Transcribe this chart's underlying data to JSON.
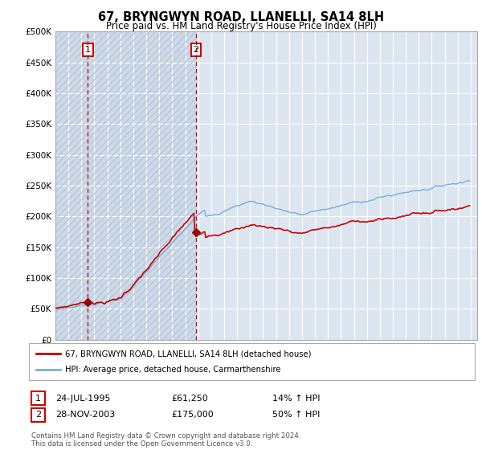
{
  "title": "67, BRYNGWYN ROAD, LLANELLI, SA14 8LH",
  "subtitle": "Price paid vs. HM Land Registry's House Price Index (HPI)",
  "sale1_label_date": "24-JUL-1995",
  "sale1_price": 61250,
  "sale1_pct": "14%",
  "sale2_label_date": "28-NOV-2003",
  "sale2_price": 175000,
  "sale2_pct": "50%",
  "legend_line1": "67, BRYNGWYN ROAD, LLANELLI, SA14 8LH (detached house)",
  "legend_line2": "HPI: Average price, detached house, Carmarthenshire",
  "footer": "Contains HM Land Registry data © Crown copyright and database right 2024.\nThis data is licensed under the Open Government Licence v3.0.",
  "ylim": [
    0,
    500000
  ],
  "yticks": [
    0,
    50000,
    100000,
    150000,
    200000,
    250000,
    300000,
    350000,
    400000,
    450000,
    500000
  ],
  "ytick_labels": [
    "£0",
    "£50K",
    "£100K",
    "£150K",
    "£200K",
    "£250K",
    "£300K",
    "£350K",
    "£400K",
    "£450K",
    "£500K"
  ],
  "background_color": "#ffffff",
  "plot_bg_color": "#dce6f1",
  "grid_color": "#ffffff",
  "sale_line_color": "#cc0000",
  "hpi_line_color": "#7bafd4",
  "price_dot_color": "#990000",
  "vline_color": "#cc0000",
  "annotation_border_color": "#cc0000",
  "annotation_text_color": "#000000"
}
